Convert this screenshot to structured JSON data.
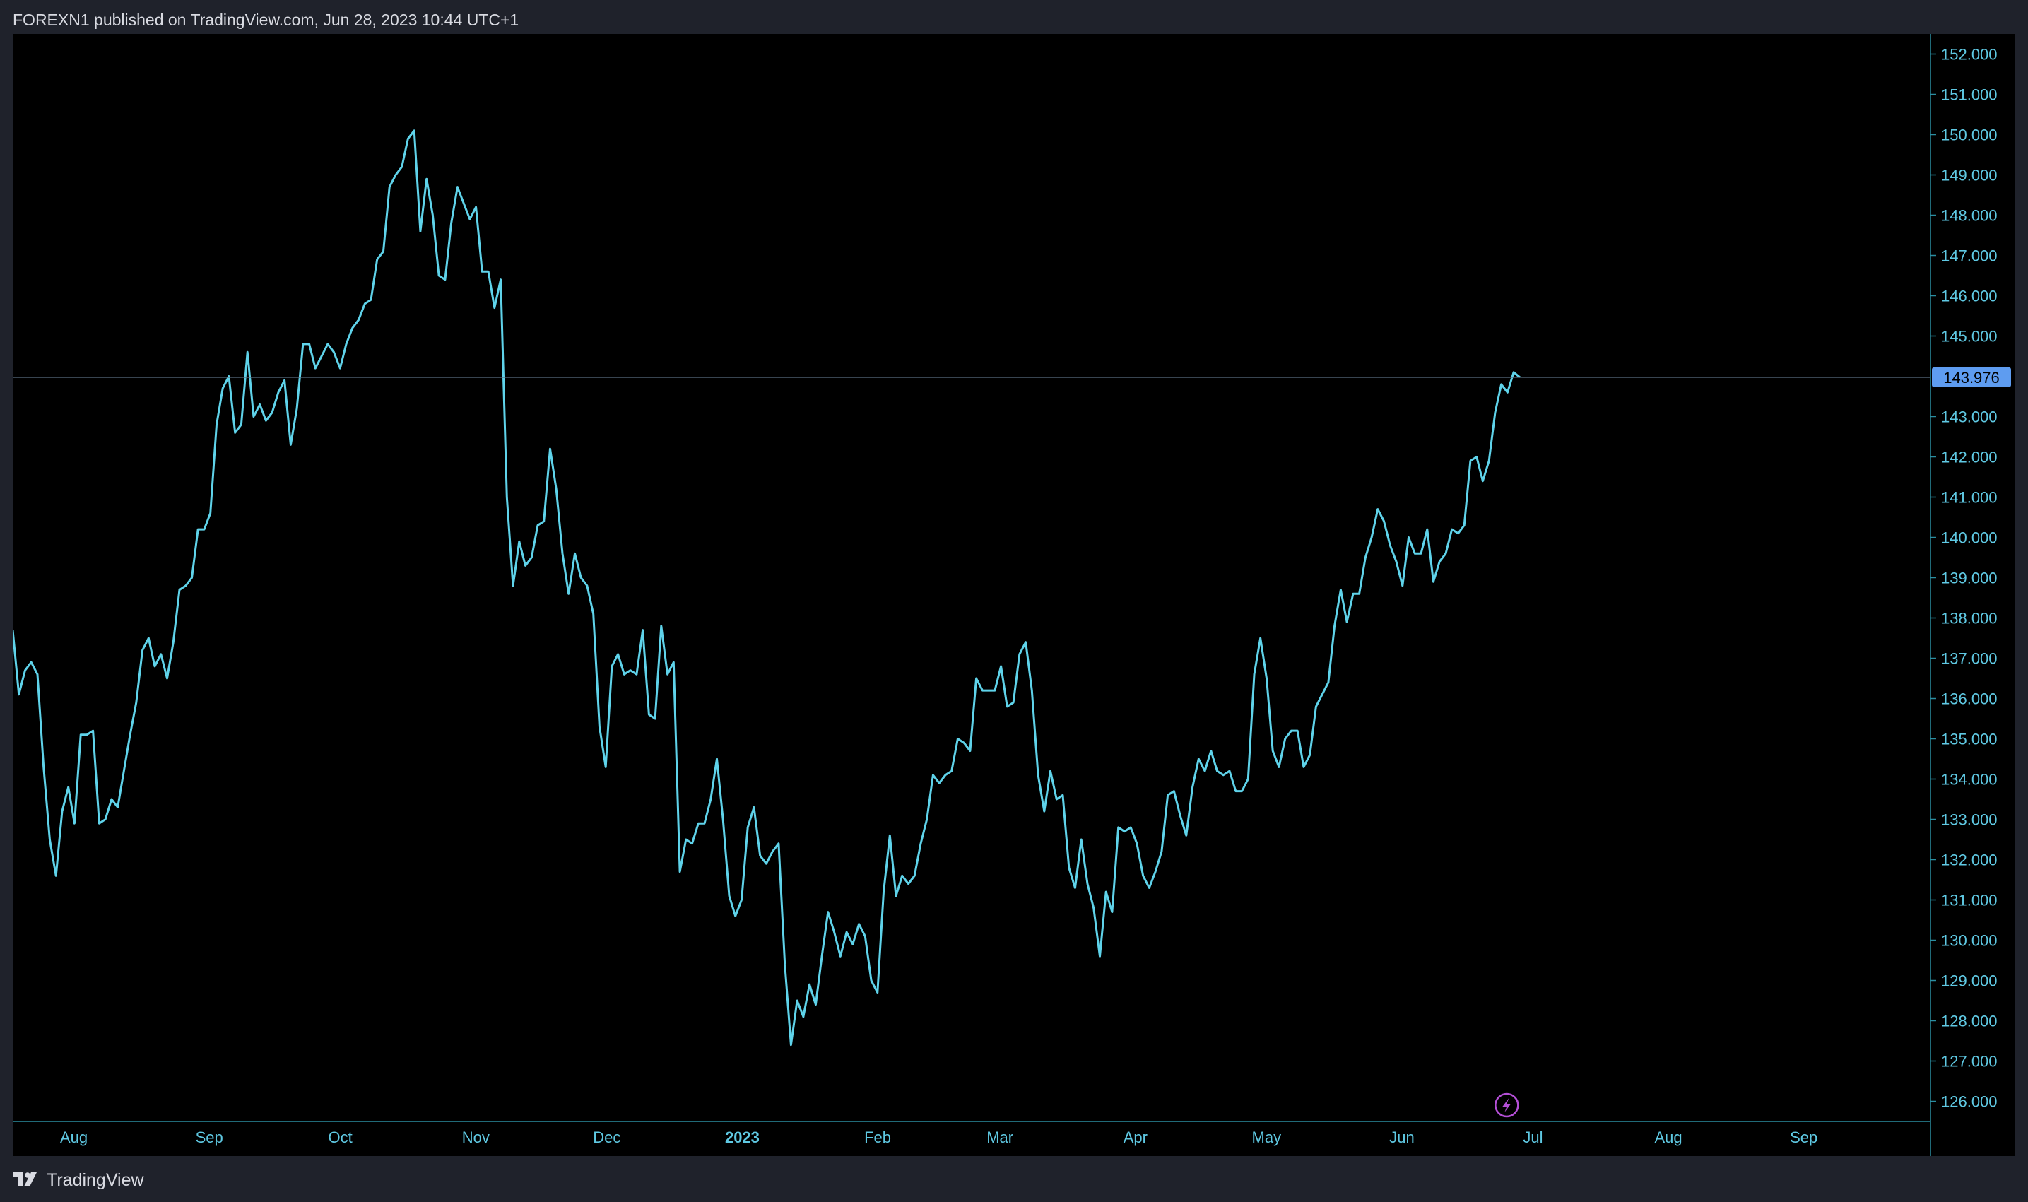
{
  "header": {
    "published_text": "FOREXN1 published on TradingView.com, Jun 28, 2023 10:44 UTC+1"
  },
  "footer": {
    "brand": "TradingView",
    "logo_icon": "tradingview-logo-icon"
  },
  "colors": {
    "line": "#5fd3ea",
    "axis_text": "#5fc9e3",
    "axis_line": "#2b8da0",
    "last_price_bg": "#5e9cf0",
    "background": "#000000",
    "page": "#1f222b",
    "event_marker": "#b44fd6"
  },
  "chart_data": {
    "type": "line",
    "series": [
      {
        "values": [
          137.7,
          136.1,
          136.7,
          136.9,
          136.6,
          134.3,
          132.5,
          131.6,
          133.2,
          133.8,
          132.9,
          135.1,
          135.1,
          135.2,
          132.9,
          133.0,
          133.5,
          133.3,
          134.2,
          135.1,
          135.9,
          137.2,
          137.5,
          136.8,
          137.1,
          136.5,
          137.4,
          138.7,
          138.8,
          139.0,
          140.2,
          140.2,
          140.6,
          142.8,
          143.7,
          144.0,
          142.6,
          142.8,
          144.6,
          143.0,
          143.3,
          142.9,
          143.1,
          143.6,
          143.9,
          142.3,
          143.2,
          144.8,
          144.8,
          144.2,
          144.5,
          144.8,
          144.6,
          144.2,
          144.8,
          145.2,
          145.4,
          145.8,
          145.9,
          146.9,
          147.1,
          148.7,
          149.0,
          149.2,
          149.9,
          150.1,
          147.6,
          148.9,
          148.0,
          146.5,
          146.4,
          147.8,
          148.7,
          148.3,
          147.9,
          148.2,
          146.6,
          146.6,
          145.7,
          146.4,
          141.0,
          138.8,
          139.9,
          139.3,
          139.5,
          140.3,
          140.4,
          142.2,
          141.2,
          139.6,
          138.6,
          139.6,
          139.0,
          138.8,
          138.1,
          135.3,
          134.3,
          136.8,
          137.1,
          136.6,
          136.7,
          136.6,
          137.7,
          135.6,
          135.5,
          137.8,
          136.6,
          136.9,
          131.7,
          132.5,
          132.4,
          132.9,
          132.9,
          133.5,
          134.5,
          133.0,
          131.1,
          130.6,
          131.0,
          132.8,
          133.3,
          132.1,
          131.9,
          132.2,
          132.4,
          129.4,
          127.4,
          128.5,
          128.1,
          128.9,
          128.4,
          129.6,
          130.7,
          130.2,
          129.6,
          130.2,
          129.9,
          130.4,
          130.1,
          129.0,
          128.7,
          131.2,
          132.6,
          131.1,
          131.6,
          131.4,
          131.6,
          132.4,
          133.0,
          134.1,
          133.9,
          134.1,
          134.2,
          135.0,
          134.9,
          134.7,
          136.5,
          136.2,
          136.2,
          136.2,
          136.8,
          135.8,
          135.9,
          137.1,
          137.4,
          136.2,
          134.1,
          133.2,
          134.2,
          133.5,
          133.6,
          131.8,
          131.3,
          132.5,
          131.4,
          130.8,
          129.6,
          131.2,
          130.7,
          132.8,
          132.7,
          132.8,
          132.4,
          131.6,
          131.3,
          131.7,
          132.2,
          133.6,
          133.7,
          133.1,
          132.6,
          133.8,
          134.5,
          134.2,
          134.7,
          134.2,
          134.1,
          134.2,
          133.7,
          133.7,
          134.0,
          136.6,
          137.5,
          136.5,
          134.7,
          134.3,
          135.0,
          135.2,
          135.2,
          134.3,
          134.6,
          135.8,
          136.1,
          136.4,
          137.8,
          138.7,
          137.9,
          138.6,
          138.6,
          139.5,
          140.0,
          140.7,
          140.4,
          139.8,
          139.4,
          138.8,
          140.0,
          139.6,
          139.6,
          140.2,
          138.9,
          139.4,
          139.6,
          140.2,
          140.1,
          140.3,
          141.9,
          142.0,
          141.4,
          141.9,
          143.1,
          143.8,
          143.6,
          144.1,
          143.976
        ],
        "start_date": "2022-07-18",
        "end_date": "2023-06-28"
      }
    ],
    "last_price": "143.976",
    "y_axis": {
      "ylim": [
        125.5,
        152.5
      ],
      "ticks": [
        "152.000",
        "151.000",
        "150.000",
        "149.000",
        "148.000",
        "147.000",
        "146.000",
        "145.000",
        "143.000",
        "142.000",
        "141.000",
        "140.000",
        "139.000",
        "138.000",
        "137.000",
        "136.000",
        "135.000",
        "134.000",
        "133.000",
        "132.000",
        "131.000",
        "130.000",
        "129.000",
        "128.000",
        "127.000",
        "126.000"
      ],
      "tick_values": [
        152,
        151,
        150,
        149,
        148,
        147,
        146,
        145,
        143,
        142,
        141,
        140,
        139,
        138,
        137,
        136,
        135,
        134,
        133,
        132,
        131,
        130,
        129,
        128,
        127,
        126
      ],
      "position": "right"
    },
    "x_axis": {
      "range": [
        "2022-07-18",
        "2023-09-30"
      ],
      "ticks": [
        {
          "label": "Aug",
          "date": "2022-08-01",
          "bold": false
        },
        {
          "label": "Sep",
          "date": "2022-09-01",
          "bold": false
        },
        {
          "label": "Oct",
          "date": "2022-10-01",
          "bold": false
        },
        {
          "label": "Nov",
          "date": "2022-11-01",
          "bold": false
        },
        {
          "label": "Dec",
          "date": "2022-12-01",
          "bold": false
        },
        {
          "label": "2023",
          "date": "2023-01-01",
          "bold": true
        },
        {
          "label": "Feb",
          "date": "2023-02-01",
          "bold": false
        },
        {
          "label": "Mar",
          "date": "2023-03-01",
          "bold": false
        },
        {
          "label": "Apr",
          "date": "2023-04-01",
          "bold": false
        },
        {
          "label": "May",
          "date": "2023-05-01",
          "bold": false
        },
        {
          "label": "Jun",
          "date": "2023-06-01",
          "bold": false
        },
        {
          "label": "Jul",
          "date": "2023-07-01",
          "bold": false
        },
        {
          "label": "Aug",
          "date": "2023-08-01",
          "bold": false
        },
        {
          "label": "Sep",
          "date": "2023-09-01",
          "bold": false
        }
      ]
    },
    "event_marker": {
      "icon": "lightning-bolt-icon",
      "date": "2023-06-25"
    },
    "grid": false
  }
}
